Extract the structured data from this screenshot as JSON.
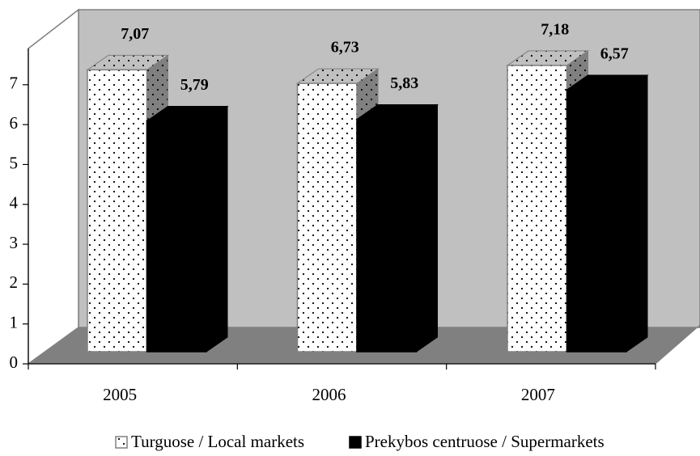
{
  "chart_data": {
    "type": "bar3d",
    "categories": [
      "2005",
      "2006",
      "2007"
    ],
    "series": [
      {
        "name": "Turguose / Local markets",
        "color": "#ffffff",
        "pattern": "dots",
        "values": [
          7.07,
          6.73,
          7.18
        ],
        "value_labels": [
          "7,07",
          "6,73",
          "7,18"
        ]
      },
      {
        "name": "Prekybos centruose / Supermarkets",
        "color": "#000000",
        "values": [
          5.79,
          5.83,
          6.57
        ],
        "value_labels": [
          "5,79",
          "5,83",
          "6,57"
        ]
      }
    ],
    "ylim": [
      0,
      8
    ],
    "yticks": [
      0,
      1,
      2,
      3,
      4,
      5,
      6,
      7
    ]
  }
}
